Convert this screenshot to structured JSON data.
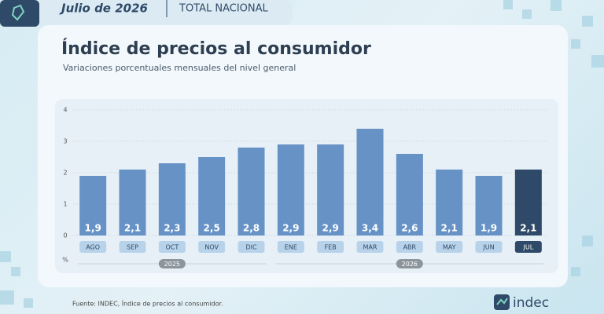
{
  "header": {
    "period": "Julio de 2026",
    "scope": "TOTAL NACIONAL"
  },
  "chart_data": {
    "type": "bar",
    "title": "Índice de precios al consumidor",
    "subtitle": "Variaciones porcentuales mensuales del nivel general",
    "unit_label": "%",
    "categories": [
      "AGO",
      "SEP",
      "OCT",
      "NOV",
      "DIC",
      "ENE",
      "FEB",
      "MAR",
      "ABR",
      "MAY",
      "JUN",
      "JUL"
    ],
    "values": [
      1.9,
      2.1,
      2.3,
      2.5,
      2.8,
      2.9,
      2.9,
      3.4,
      2.6,
      2.1,
      1.9,
      2.1
    ],
    "value_labels": [
      "1,9",
      "2,1",
      "2,3",
      "2,5",
      "2,8",
      "2,9",
      "2,9",
      "3,4",
      "2,6",
      "2,1",
      "1,9",
      "2,1"
    ],
    "colors": [
      "#6692c6",
      "#6692c6",
      "#6692c6",
      "#6692c6",
      "#6692c6",
      "#6692c6",
      "#6692c6",
      "#6692c6",
      "#6692c6",
      "#6692c6",
      "#6692c6",
      "#2f4a68"
    ],
    "year_groups": [
      {
        "label": "2025",
        "count": 5
      },
      {
        "label": "2026",
        "count": 7
      }
    ],
    "ylim": [
      0,
      4
    ],
    "yticks": [
      0,
      1,
      2,
      3,
      4
    ],
    "grid": true
  },
  "footer": {
    "source": "Fuente: INDEC, Índice de precios al consumidor.",
    "logo": "indec"
  }
}
